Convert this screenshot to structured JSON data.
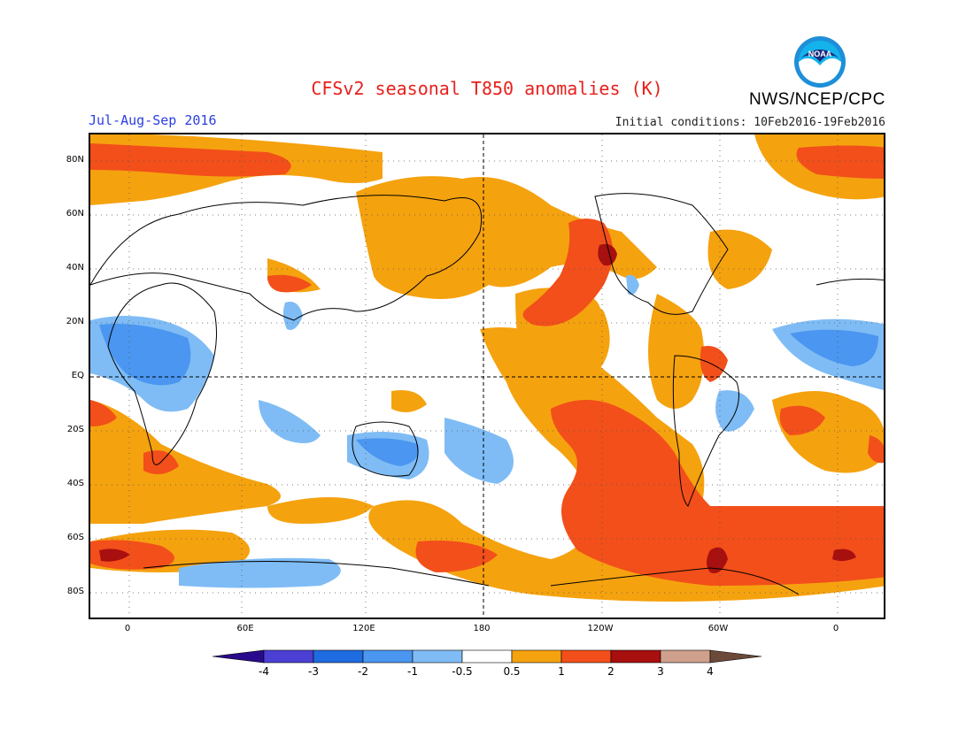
{
  "title": "CFSv2 seasonal T850 anomalies (K)",
  "agency": "NWS/NCEP/CPC",
  "logo_text": "NOAA",
  "period": "Jul-Aug-Sep 2016",
  "initial_conditions": "Initial conditions: 10Feb2016-19Feb2016",
  "lat_labels": [
    "80N",
    "60N",
    "40N",
    "20N",
    "EQ",
    "20S",
    "40S",
    "60S",
    "80S"
  ],
  "lon_labels": [
    "0",
    "60E",
    "120E",
    "180",
    "120W",
    "60W",
    "0"
  ],
  "colorbar": {
    "labels": [
      "-4",
      "-3",
      "-2",
      "-1",
      "-0.5",
      "0.5",
      "1",
      "2",
      "3",
      "4"
    ],
    "colors": [
      "#2a0a8c",
      "#4b3fd4",
      "#1f6be0",
      "#4a96f0",
      "#7fbcf5",
      "#ffffff",
      "#f5a20f",
      "#f24f1a",
      "#a80f0f",
      "#cfa08c",
      "#6b4a3a"
    ]
  },
  "colors": {
    "warm1": "#f5a20f",
    "warm2": "#f24f1a",
    "warm3": "#a80f0f",
    "cool1": "#7fbcf5",
    "cool2": "#4a96f0",
    "cool3": "#1f6be0"
  }
}
